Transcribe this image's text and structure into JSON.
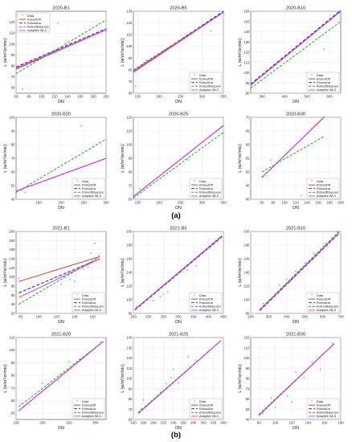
{
  "legend_labels": [
    "Data",
    "RobustOff",
    "RobustLar",
    "RobustBisquare",
    "Adaptive WLS"
  ],
  "series_styles": [
    {
      "name": "RobustOff",
      "color": "#c0392b",
      "dash": "none"
    },
    {
      "name": "RobustLar",
      "color": "#1f1f8f",
      "dash": "4,2"
    },
    {
      "name": "RobustBisquare",
      "color": "#22a622",
      "dash": "3,2"
    },
    {
      "name": "Adaptive WLS",
      "color": "#e040e0",
      "dash": "none"
    }
  ],
  "data_color": "#3b9fd8",
  "ylabel": "L (w/m²/sr/mic)",
  "xlabel": "DN",
  "caption_a": "(a)",
  "caption_b": "(b)",
  "chart_data": [
    {
      "type": "scatter",
      "title": "2020-B1",
      "xlim": [
        60,
        200
      ],
      "ylim": [
        55,
        130
      ],
      "xticks": [
        60,
        80,
        100,
        120,
        140,
        160,
        180,
        200
      ],
      "yticks": [
        60,
        70,
        80,
        90,
        100,
        110,
        120
      ],
      "points": [
        [
          70,
          58
        ],
        [
          125,
          118
        ],
        [
          200,
          111
        ]
      ],
      "lines": {
        "RobustOff": [
          [
            60,
            77
          ],
          [
            200,
            113
          ]
        ],
        "RobustLar": [
          [
            60,
            79
          ],
          [
            200,
            114
          ]
        ],
        "RobustBisquare": [
          [
            60,
            73
          ],
          [
            200,
            122
          ]
        ],
        "Adaptive WLS": [
          [
            60,
            78
          ],
          [
            200,
            113
          ]
        ]
      }
    },
    {
      "type": "scatter",
      "title": "2020-B5",
      "xlim": [
        140,
        350
      ],
      "ylim": [
        60,
        130
      ],
      "xticks": [
        150,
        200,
        250,
        300,
        350
      ],
      "yticks": [
        60,
        70,
        80,
        90,
        100,
        110,
        120,
        130
      ],
      "points": [
        [
          145,
          65
        ],
        [
          170,
          87
        ],
        [
          320,
          112
        ],
        [
          350,
          129
        ]
      ],
      "lines": {
        "RobustOff": [
          [
            140,
            78
          ],
          [
            350,
            129
          ]
        ],
        "RobustLar": [
          [
            140,
            79
          ],
          [
            350,
            130
          ]
        ],
        "RobustBisquare": [
          [
            140,
            80
          ],
          [
            350,
            129
          ]
        ],
        "Adaptive WLS": [
          [
            140,
            79
          ],
          [
            350,
            129
          ]
        ]
      }
    },
    {
      "type": "scatter",
      "title": "2020-B10",
      "xlim": [
        250,
        650
      ],
      "ylim": [
        80,
        160
      ],
      "xticks": [
        300,
        400,
        500,
        600
      ],
      "yticks": [
        80,
        90,
        100,
        110,
        120,
        130,
        140,
        150,
        160
      ],
      "points": [
        [
          255,
          87
        ],
        [
          290,
          95
        ],
        [
          575,
          122
        ],
        [
          645,
          159
        ]
      ],
      "lines": {
        "RobustOff": [
          [
            250,
            88
          ],
          [
            650,
            160
          ]
        ],
        "RobustLar": [
          [
            250,
            89
          ],
          [
            650,
            161
          ]
        ],
        "RobustBisquare": [
          [
            250,
            85
          ],
          [
            650,
            150
          ]
        ],
        "Adaptive WLS": [
          [
            250,
            88
          ],
          [
            650,
            160
          ]
        ]
      }
    },
    {
      "type": "scatter",
      "title": "2020-B20",
      "xlim": [
        100,
        300
      ],
      "ylim": [
        40,
        100
      ],
      "xticks": [
        150,
        200,
        250,
        300
      ],
      "yticks": [
        40,
        50,
        60,
        70,
        80,
        90,
        100
      ],
      "points": [
        [
          112,
          46
        ],
        [
          120,
          44
        ],
        [
          245,
          93
        ],
        [
          300,
          71
        ]
      ],
      "lines": {
        "RobustOff": [
          [
            100,
            46
          ],
          [
            300,
            70
          ]
        ],
        "RobustLar": [
          [
            100,
            46
          ],
          [
            300,
            70
          ]
        ],
        "RobustBisquare": [
          [
            100,
            45
          ],
          [
            300,
            84
          ]
        ],
        "Adaptive WLS": [
          [
            100,
            46
          ],
          [
            300,
            70
          ]
        ]
      }
    },
    {
      "type": "scatter",
      "title": "2020-B25",
      "xlim": [
        140,
        350
      ],
      "ylim": [
        60,
        120
      ],
      "xticks": [
        150,
        200,
        250,
        300,
        350
      ],
      "yticks": [
        60,
        70,
        80,
        90,
        100,
        110,
        120
      ],
      "points": [
        [
          145,
          63
        ],
        [
          155,
          67
        ],
        [
          268,
          88
        ],
        [
          345,
          112
        ]
      ],
      "lines": {
        "RobustOff": [
          [
            140,
            62
          ],
          [
            350,
            114
          ]
        ],
        "RobustLar": [
          [
            140,
            62
          ],
          [
            350,
            114
          ]
        ],
        "RobustBisquare": [
          [
            140,
            61
          ],
          [
            350,
            109
          ]
        ],
        "Adaptive WLS": [
          [
            140,
            62
          ],
          [
            350,
            114
          ]
        ]
      }
    },
    {
      "type": "scatter",
      "title": "2020-B30",
      "xlim": [
        40,
        200
      ],
      "ylim": [
        40,
        70
      ],
      "xticks": [
        60,
        80,
        100,
        120,
        140,
        160,
        180,
        200
      ],
      "yticks": [
        40,
        45,
        50,
        55,
        60,
        65,
        70
      ],
      "points": [
        [
          60,
          48
        ],
        [
          75,
          54
        ],
        [
          130,
          41
        ],
        [
          170,
          70
        ]
      ],
      "lines": {
        "RobustOff": [
          [
            60,
            48
          ],
          [
            170,
            70
          ]
        ],
        "RobustLar": [
          [
            60,
            48
          ],
          [
            170,
            70
          ]
        ],
        "RobustBisquare": [
          [
            60,
            50
          ],
          [
            170,
            63
          ]
        ],
        "Adaptive WLS": [
          [
            60,
            48
          ],
          [
            170,
            70
          ]
        ]
      }
    },
    {
      "type": "scatter",
      "title": "2021-B1",
      "xlim": [
        75,
        175
      ],
      "ylim": [
        20,
        200
      ],
      "xticks": [
        80,
        100,
        120,
        140,
        160
      ],
      "yticks": [
        20,
        40,
        60,
        80,
        100,
        120,
        140,
        160,
        180,
        200
      ],
      "points": [
        [
          78,
          95
        ],
        [
          125,
          82
        ],
        [
          128,
          98
        ],
        [
          135,
          92
        ],
        [
          140,
          88
        ],
        [
          150,
          115
        ],
        [
          155,
          120
        ],
        [
          158,
          150
        ],
        [
          163,
          172
        ],
        [
          167,
          145
        ]
      ],
      "lines": {
        "RobustOff": [
          [
            78,
            90
          ],
          [
            168,
            145
          ]
        ],
        "RobustLar": [
          [
            78,
            65
          ],
          [
            168,
            140
          ]
        ],
        "RobustBisquare": [
          [
            78,
            40
          ],
          [
            168,
            145
          ]
        ],
        "Adaptive WLS": [
          [
            78,
            55
          ],
          [
            168,
            140
          ]
        ]
      }
    },
    {
      "type": "scatter",
      "title": "2021-B5",
      "xlim": [
        150,
        450
      ],
      "ylim": [
        80,
        200
      ],
      "xticks": [
        150,
        200,
        250,
        300,
        350,
        400,
        450
      ],
      "yticks": [
        80,
        100,
        120,
        140,
        160,
        180,
        200
      ],
      "points": [
        [
          160,
          88
        ],
        [
          215,
          97
        ],
        [
          240,
          103
        ],
        [
          250,
          107
        ],
        [
          265,
          110
        ],
        [
          330,
          142
        ],
        [
          360,
          148
        ],
        [
          440,
          190
        ]
      ],
      "lines": {
        "RobustOff": [
          [
            155,
            86
          ],
          [
            445,
            193
          ]
        ],
        "RobustLar": [
          [
            155,
            85
          ],
          [
            445,
            192
          ]
        ],
        "RobustBisquare": [
          [
            155,
            86
          ],
          [
            445,
            194
          ]
        ],
        "Adaptive WLS": [
          [
            155,
            86
          ],
          [
            445,
            193
          ]
        ]
      }
    },
    {
      "type": "scatter",
      "title": "2021-B10",
      "xlim": [
        200,
        700
      ],
      "ylim": [
        80,
        200
      ],
      "xticks": [
        200,
        300,
        400,
        500,
        600,
        700
      ],
      "yticks": [
        80,
        100,
        120,
        140,
        160,
        180,
        200
      ],
      "points": [
        [
          270,
          93
        ],
        [
          360,
          120
        ],
        [
          400,
          128
        ],
        [
          420,
          125
        ],
        [
          450,
          140
        ],
        [
          500,
          152
        ],
        [
          550,
          166
        ],
        [
          610,
          180
        ],
        [
          680,
          198
        ]
      ],
      "lines": {
        "RobustOff": [
          [
            250,
            85
          ],
          [
            690,
            198
          ]
        ],
        "RobustLar": [
          [
            250,
            84
          ],
          [
            690,
            197
          ]
        ],
        "RobustBisquare": [
          [
            250,
            86
          ],
          [
            690,
            200
          ]
        ],
        "Adaptive WLS": [
          [
            250,
            85
          ],
          [
            690,
            198
          ]
        ]
      }
    },
    {
      "type": "scatter",
      "title": "2021-B20",
      "xlim": [
        150,
        320
      ],
      "ylim": [
        45,
        110
      ],
      "xticks": [
        150,
        200,
        250,
        300
      ],
      "yticks": [
        50,
        60,
        70,
        80,
        90,
        100,
        110
      ],
      "points": [
        [
          160,
          57
        ],
        [
          175,
          56
        ],
        [
          200,
          73
        ],
        [
          210,
          72
        ],
        [
          230,
          75
        ],
        [
          250,
          90
        ],
        [
          270,
          92
        ],
        [
          310,
          106
        ]
      ],
      "lines": {
        "RobustOff": [
          [
            155,
            52
          ],
          [
            315,
            107
          ]
        ],
        "RobustLar": [
          [
            155,
            52
          ],
          [
            315,
            107
          ]
        ],
        "RobustBisquare": [
          [
            155,
            55
          ],
          [
            315,
            107
          ]
        ],
        "Adaptive WLS": [
          [
            155,
            52
          ],
          [
            315,
            107
          ]
        ]
      }
    },
    {
      "type": "scatter",
      "title": "2021-B25",
      "xlim": [
        160,
        340
      ],
      "ylim": [
        60,
        140
      ],
      "xticks": [
        160,
        180,
        200,
        220,
        240,
        260,
        280,
        300,
        320,
        340
      ],
      "yticks": [
        60,
        70,
        80,
        90,
        100,
        110,
        120,
        130,
        140
      ],
      "points": [
        [
          175,
          69
        ],
        [
          180,
          78
        ],
        [
          200,
          78
        ],
        [
          215,
          86
        ],
        [
          225,
          94
        ],
        [
          235,
          100
        ],
        [
          240,
          108
        ],
        [
          250,
          95
        ],
        [
          270,
          120
        ],
        [
          285,
          117
        ]
      ],
      "lines": {
        "RobustOff": [
          [
            170,
            66
          ],
          [
            335,
            137
          ]
        ],
        "RobustLar": [
          [
            170,
            66
          ],
          [
            335,
            137
          ]
        ],
        "RobustBisquare": [
          [
            170,
            67
          ],
          [
            335,
            137
          ]
        ],
        "Adaptive WLS": [
          [
            170,
            66
          ],
          [
            335,
            137
          ]
        ]
      }
    },
    {
      "type": "scatter",
      "title": "2021-B30",
      "xlim": [
        70,
        180
      ],
      "ylim": [
        40,
        120
      ],
      "xticks": [
        80,
        100,
        120,
        140,
        160,
        180
      ],
      "yticks": [
        40,
        50,
        60,
        70,
        80,
        90,
        100,
        110,
        120
      ],
      "points": [
        [
          85,
          45
        ],
        [
          95,
          60
        ],
        [
          100,
          51
        ],
        [
          115,
          62
        ],
        [
          120,
          56
        ],
        [
          125,
          85
        ],
        [
          135,
          80
        ],
        [
          145,
          95
        ],
        [
          155,
          88
        ],
        [
          170,
          113
        ]
      ],
      "lines": {
        "RobustOff": [
          [
            80,
            44
          ],
          [
            172,
            114
          ]
        ],
        "RobustLar": [
          [
            80,
            44
          ],
          [
            172,
            114
          ]
        ],
        "RobustBisquare": [
          [
            80,
            45
          ],
          [
            172,
            114
          ]
        ],
        "Adaptive WLS": [
          [
            80,
            44
          ],
          [
            172,
            114
          ]
        ]
      }
    }
  ]
}
